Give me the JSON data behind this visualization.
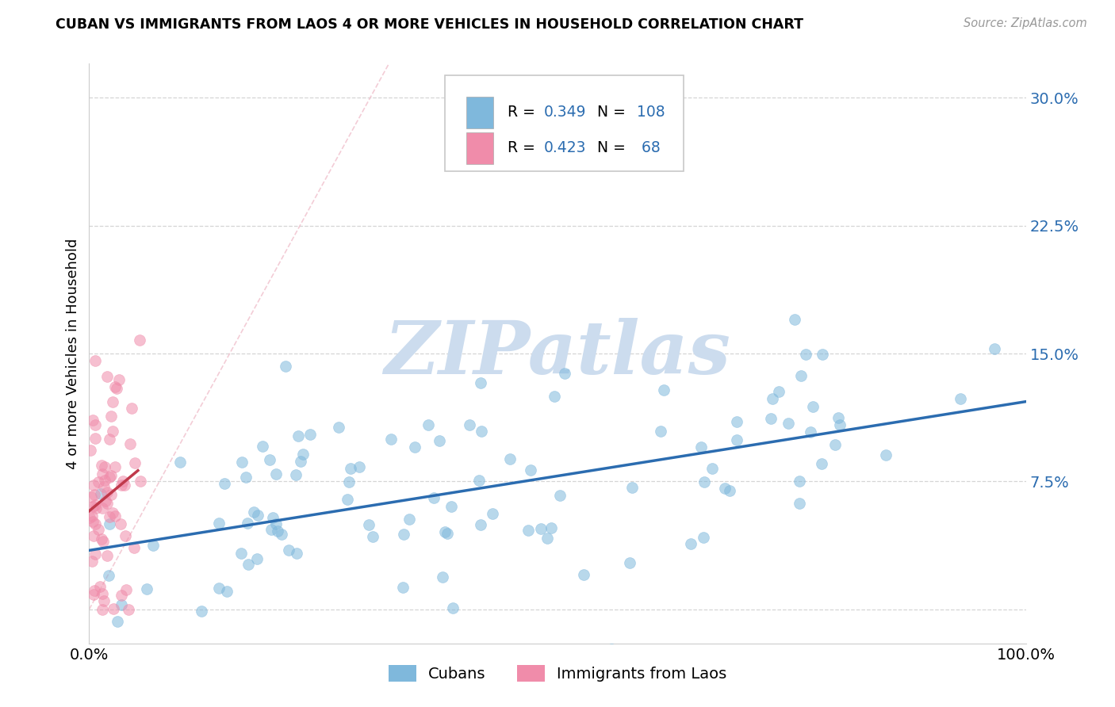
{
  "title": "CUBAN VS IMMIGRANTS FROM LAOS 4 OR MORE VEHICLES IN HOUSEHOLD CORRELATION CHART",
  "source": "Source: ZipAtlas.com",
  "ylabel": "4 or more Vehicles in Household",
  "r_blue": 0.349,
  "n_blue": 108,
  "r_pink": 0.423,
  "n_pink": 68,
  "blue_color": "#7fb8dc",
  "pink_color": "#f08caa",
  "blue_line_color": "#2b6cb0",
  "pink_line_color": "#c0394b",
  "diag_line_color": "#f0c0cc",
  "watermark": "ZIPatlas",
  "watermark_color": "#ccdcee",
  "legend_label_blue": "Cubans",
  "legend_label_pink": "Immigrants from Laos",
  "r_n_color": "#2b6cb0",
  "xmin": 0.0,
  "xmax": 1.0,
  "ymin": -0.02,
  "ymax": 0.32,
  "ytick_vals": [
    0.0,
    0.075,
    0.15,
    0.225,
    0.3
  ],
  "ytick_labels": [
    "",
    "7.5%",
    "15.0%",
    "22.5%",
    "30.0%"
  ]
}
